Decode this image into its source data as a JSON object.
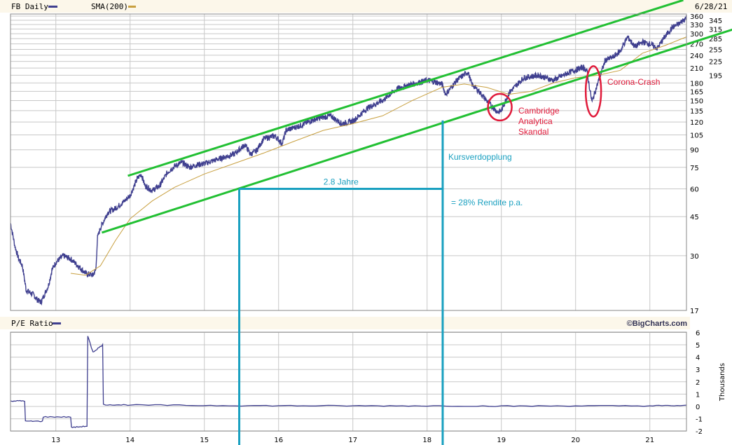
{
  "header": {
    "symbol_label": "FB Daily",
    "sma_label": "SMA(200)",
    "date": "6/28/21",
    "price_color": "#3f3f8f",
    "sma_color": "#c8a040"
  },
  "pe_header": {
    "label": "P/E Ratio",
    "brand": "©BigCharts.com"
  },
  "chart_data": [
    {
      "type": "line",
      "title": "FB Daily",
      "yscale": "log",
      "ylim": [
        17,
        360
      ],
      "xlim": [
        2012.38,
        2021.49
      ],
      "yticks": [
        360,
        345,
        330,
        315,
        300,
        285,
        270,
        255,
        240,
        225,
        210,
        195,
        180,
        165,
        150,
        135,
        120,
        105,
        90,
        75,
        60,
        45,
        30,
        17
      ],
      "xticks": [
        {
          "v": 2013,
          "label": "13"
        },
        {
          "v": 2014,
          "label": "14"
        },
        {
          "v": 2015,
          "label": "15"
        },
        {
          "v": 2016,
          "label": "16"
        },
        {
          "v": 2017,
          "label": "17"
        },
        {
          "v": 2018,
          "label": "18"
        },
        {
          "v": 2019,
          "label": "19"
        },
        {
          "v": 2020,
          "label": "20"
        },
        {
          "v": 2021,
          "label": "21"
        }
      ],
      "series": [
        {
          "name": "FB Daily",
          "color": "#3f3f8f",
          "x": [
            2012.39,
            2012.45,
            2012.5,
            2012.55,
            2012.6,
            2012.7,
            2012.75,
            2012.8,
            2012.9,
            2012.95,
            2013.0,
            2013.1,
            2013.2,
            2013.3,
            2013.4,
            2013.5,
            2013.54,
            2013.56,
            2013.6,
            2013.7,
            2013.8,
            2013.9,
            2014.0,
            2014.1,
            2014.15,
            2014.2,
            2014.3,
            2014.4,
            2014.5,
            2014.6,
            2014.7,
            2014.8,
            2014.9,
            2015.0,
            2015.2,
            2015.4,
            2015.55,
            2015.62,
            2015.7,
            2015.8,
            2015.95,
            2016.05,
            2016.1,
            2016.3,
            2016.5,
            2016.7,
            2016.85,
            2017.0,
            2017.2,
            2017.4,
            2017.6,
            2017.8,
            2018.0,
            2018.1,
            2018.2,
            2018.25,
            2018.4,
            2018.55,
            2018.6,
            2018.7,
            2018.8,
            2018.95,
            2019.0,
            2019.1,
            2019.3,
            2019.5,
            2019.7,
            2019.9,
            2020.1,
            2020.15,
            2020.22,
            2020.3,
            2020.4,
            2020.5,
            2020.6,
            2020.7,
            2020.8,
            2020.9,
            2021.0,
            2021.1,
            2021.2,
            2021.3,
            2021.4,
            2021.49
          ],
          "y": [
            42,
            33,
            29,
            27,
            21,
            20,
            19,
            18.5,
            22,
            26,
            28,
            30,
            29,
            27,
            25,
            24.5,
            26,
            36,
            40,
            47,
            49,
            52,
            56,
            67,
            70,
            62,
            59,
            62,
            71,
            76,
            79,
            75,
            77,
            78,
            82,
            86,
            95,
            86,
            89,
            101,
            104,
            96,
            110,
            116,
            124,
            128,
            118,
            121,
            139,
            150,
            170,
            178,
            185,
            182,
            178,
            160,
            185,
            202,
            178,
            165,
            150,
            133,
            135,
            162,
            190,
            195,
            185,
            200,
            212,
            205,
            148,
            180,
            228,
            235,
            250,
            290,
            262,
            275,
            270,
            258,
            290,
            320,
            333,
            355
          ]
        },
        {
          "name": "SMA(200)",
          "color": "#c8a040",
          "x": [
            2013.2,
            2013.4,
            2013.6,
            2013.8,
            2014.0,
            2014.3,
            2014.6,
            2015.0,
            2015.4,
            2015.8,
            2016.2,
            2016.6,
            2017.0,
            2017.4,
            2017.8,
            2018.2,
            2018.5,
            2018.8,
            2019.1,
            2019.4,
            2019.7,
            2020.0,
            2020.3,
            2020.6,
            2020.9,
            2021.2,
            2021.49
          ],
          "y": [
            25,
            24.5,
            27,
            35,
            44,
            53,
            61,
            70,
            78,
            87,
            98,
            110,
            118,
            128,
            150,
            172,
            178,
            172,
            160,
            165,
            180,
            190,
            195,
            205,
            245,
            265,
            290
          ]
        }
      ],
      "trendlines": [
        {
          "name": "channel-upper",
          "color": "#22c033",
          "from": [
            2013.97,
            68.7
          ],
          "to": [
            2021.45,
            425
          ]
        },
        {
          "name": "channel-lower",
          "color": "#22c033",
          "from": [
            2013.62,
            38.1
          ],
          "to": [
            2022.11,
            313
          ]
        }
      ],
      "annotations": {
        "doubling_color": "#1aa0c0",
        "doubling_start": [
          2015.47,
          60
        ],
        "doubling_end": [
          2018.21,
          122
        ],
        "duration_label": "2.8 Jahre",
        "doubling_label": "Kursverdopplung",
        "return_label": "= 28% Rendite p.a.",
        "event_color": "#e01a3a",
        "events": [
          {
            "lines": [
              "Cambridge",
              "Analytica",
              "Skandal"
            ],
            "x": 2018.98,
            "y": 140
          },
          {
            "lines": [
              "Corona-Crash"
            ],
            "x": 2020.24,
            "y": 165
          }
        ]
      }
    },
    {
      "type": "line",
      "title": "P/E Ratio",
      "ylabel": "Thousands",
      "ylim": [
        -2,
        6
      ],
      "yticks": [
        6,
        5,
        4,
        3,
        2,
        1,
        0,
        -1,
        -2
      ],
      "series": [
        {
          "name": "P/E Ratio",
          "color": "#3f3f8f",
          "x": [
            2012.39,
            2012.58,
            2012.59,
            2012.82,
            2012.83,
            2013.2,
            2013.21,
            2013.42,
            2013.43,
            2013.5,
            2013.63,
            2013.64,
            2014.0,
            2015.0,
            2016.0,
            2017.0,
            2018.0,
            2019.0,
            2020.0,
            2021.0,
            2021.49
          ],
          "y": [
            0.45,
            0.45,
            -1.2,
            -1.2,
            -0.85,
            -0.85,
            -1.7,
            -1.6,
            5.7,
            4.4,
            5.0,
            0.15,
            0.12,
            0.08,
            0.06,
            0.05,
            0.05,
            0.03,
            0.05,
            0.05,
            0.08
          ]
        }
      ]
    }
  ]
}
